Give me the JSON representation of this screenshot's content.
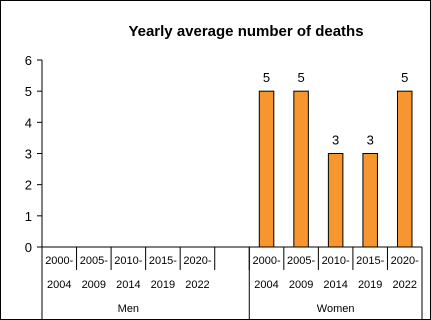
{
  "chart_data": {
    "type": "bar",
    "title": "Yearly average number of deaths",
    "xlabel": "",
    "ylabel": "",
    "ylim": [
      0,
      6
    ],
    "yticks": [
      0,
      1,
      2,
      3,
      4,
      5,
      6
    ],
    "grid": false,
    "groups": [
      {
        "name": "Men",
        "categories": [
          [
            "2000-",
            "2004"
          ],
          [
            "2005-",
            "2009"
          ],
          [
            "2010-",
            "2014"
          ],
          [
            "2015-",
            "2019"
          ],
          [
            "2020-",
            "2022"
          ]
        ],
        "values": [
          0,
          0,
          0,
          0,
          0
        ],
        "data_labels": [
          "",
          "",
          "",
          "",
          ""
        ]
      },
      {
        "name": "Women",
        "categories": [
          [
            "2000-",
            "2004"
          ],
          [
            "2005-",
            "2009"
          ],
          [
            "2010-",
            "2014"
          ],
          [
            "2015-",
            "2019"
          ],
          [
            "2020-",
            "2022"
          ]
        ],
        "values": [
          5,
          5,
          3,
          3,
          5
        ],
        "data_labels": [
          "5",
          "5",
          "3",
          "3",
          "5"
        ]
      }
    ],
    "bar_color": "#F7962F",
    "bar_edge_color": "#000000"
  }
}
